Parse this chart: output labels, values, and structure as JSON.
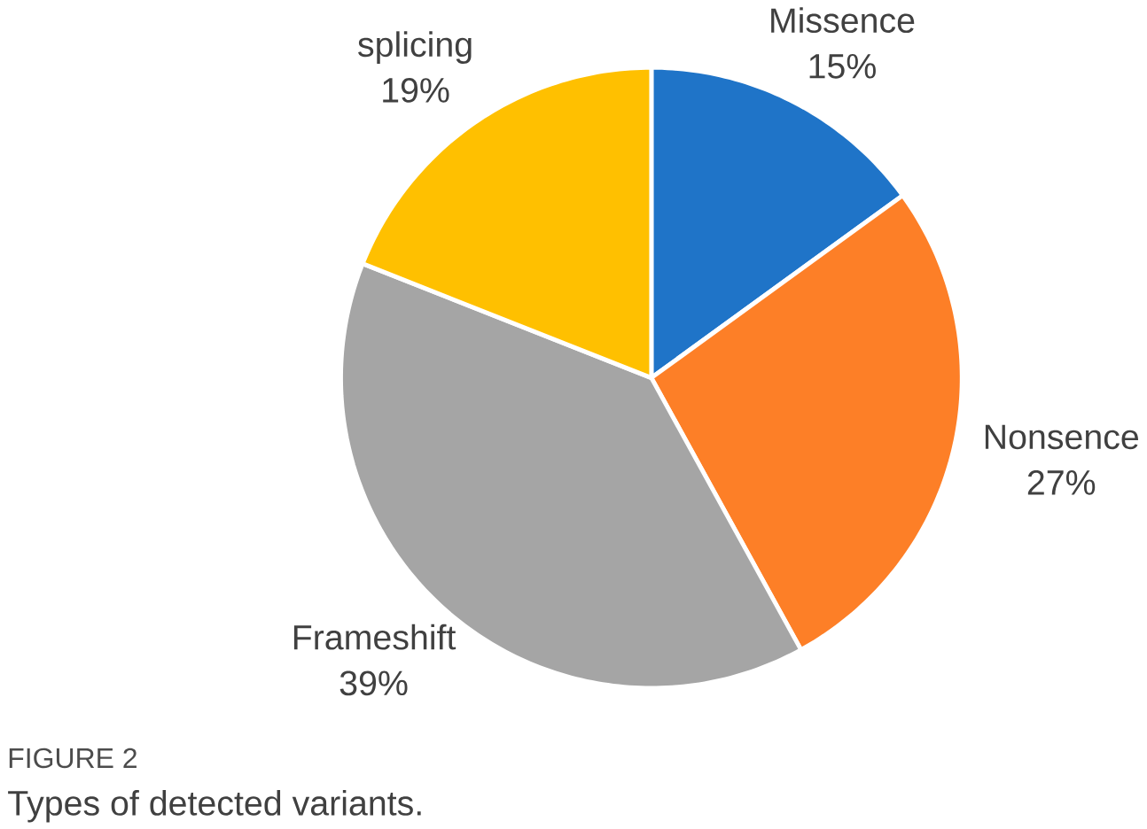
{
  "chart_data": {
    "type": "pie",
    "categories": [
      "Missence",
      "Nonsence",
      "Frameshift",
      "splicing"
    ],
    "values": [
      15,
      27,
      39,
      19
    ],
    "value_labels": [
      "15%",
      "27%",
      "39%",
      "19%"
    ],
    "colors": [
      "#1f74c8",
      "#fd7f27",
      "#a5a5a5",
      "#ffc000"
    ],
    "annotations": [
      "FIGURE 2",
      "Types of detected variants."
    ]
  }
}
